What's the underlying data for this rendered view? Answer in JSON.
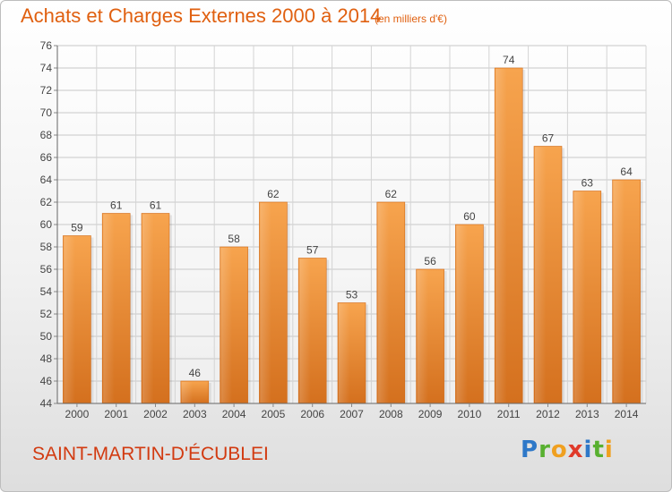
{
  "chart_data": {
    "type": "bar",
    "title": "Achats et Charges Externes 2000 à 2014",
    "subtitle": "(en milliers d'€)",
    "categories": [
      "2000",
      "2001",
      "2002",
      "2003",
      "2004",
      "2005",
      "2006",
      "2007",
      "2008",
      "2009",
      "2010",
      "2011",
      "2012",
      "2013",
      "2014"
    ],
    "values": [
      59,
      61,
      61,
      46,
      58,
      62,
      57,
      53,
      62,
      56,
      60,
      74,
      67,
      63,
      64
    ],
    "ylim": [
      44,
      76
    ],
    "yticks": [
      44,
      46,
      48,
      50,
      52,
      54,
      56,
      58,
      60,
      62,
      64,
      66,
      68,
      70,
      72,
      74,
      76
    ],
    "grid": true,
    "bar_color": "#f39a3c",
    "bar_color_dark": "#d8701c"
  },
  "place_name": "SAINT-MARTIN-D'ÉCUBLEI",
  "logo_text": "Proxiti",
  "colors": {
    "title": "#e06010",
    "place": "#d23a10"
  }
}
